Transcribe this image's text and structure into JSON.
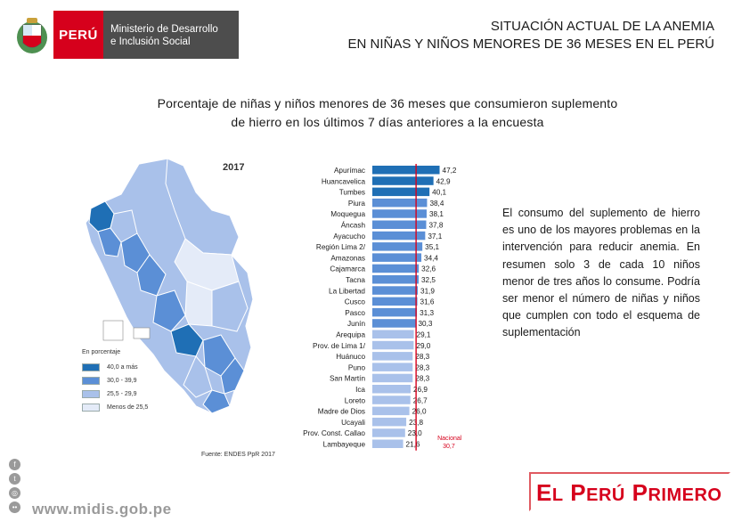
{
  "header": {
    "peru_label": "PERÚ",
    "ministry_line1": "Ministerio de Desarrollo",
    "ministry_line2": "e Inclusión Social",
    "title_line1": "SITUACIÓN ACTUAL DE LA ANEMIA",
    "title_line2": "EN NIÑAS Y NIÑOS MENORES DE 36 MESES EN EL PERÚ"
  },
  "subtitle_line1": "Porcentaje de niñas y niños menores de 36 meses que consumieron suplemento",
  "subtitle_line2": "de hierro en los últimos 7 días anteriores a la encuesta",
  "map": {
    "year": "2017",
    "legend_title": "En porcentaje",
    "legend": [
      {
        "label": "40,0 a más",
        "color": "#1f6fb5"
      },
      {
        "label": "30,0 - 39,9",
        "color": "#5b8fd6"
      },
      {
        "label": "25,5 - 29,9",
        "color": "#a9c1ea"
      },
      {
        "label": "Menos de 25,5",
        "color": "#e4ebf8"
      }
    ],
    "source": "Fuente: ENDES PpR 2017"
  },
  "chart_data": {
    "type": "bar",
    "orientation": "horizontal",
    "categories": [
      "Apurímac",
      "Huancavelica",
      "Tumbes",
      "Piura",
      "Moquegua",
      "Áncash",
      "Ayacucho",
      "Región Lima 2/",
      "Amazonas",
      "Cajamarca",
      "Tacna",
      "La Libertad",
      "Cusco",
      "Pasco",
      "Junín",
      "Arequipa",
      "Prov. de Lima 1/",
      "Huánuco",
      "Puno",
      "San Martín",
      "Ica",
      "Loreto",
      "Madre de Dios",
      "Ucayali",
      "Prov. Const. Callao",
      "Lambayeque"
    ],
    "values": [
      47.2,
      42.9,
      40.1,
      38.4,
      38.1,
      37.8,
      37.1,
      35.1,
      34.4,
      32.6,
      32.5,
      31.9,
      31.6,
      31.3,
      30.3,
      29.1,
      29.0,
      28.3,
      28.3,
      28.3,
      26.9,
      26.7,
      26.0,
      23.8,
      23.0,
      21.6
    ],
    "value_labels": [
      "47,2",
      "42,9",
      "40,1",
      "38,4",
      "38,1",
      "37,8",
      "37,1",
      "35,1",
      "34,4",
      "32,6",
      "32,5",
      "31,9",
      "31,6",
      "31,3",
      "30,3",
      "29,1",
      "29,0",
      "28,3",
      "28,3",
      "28,3",
      "26,9",
      "26,7",
      "26,0",
      "23,8",
      "23,0",
      "21,6"
    ],
    "reference_line": {
      "label": "Nacional",
      "value": 30.7,
      "value_label": "30,7",
      "color": "#d6001c"
    },
    "colors": {
      "dark": "#1f6fb5",
      "mid": "#5b8fd6",
      "light": "#a9c1ea"
    }
  },
  "paragraph": "El consumo del suplemento de hierro es uno de los mayores problemas en la intervención para reducir anemia. En resumen solo 3 de cada 10 niños menor de tres años lo consume. Podría ser menor el número de niñas y niños que cumplen con todo el esquema de suplementación",
  "footer": {
    "website": "www.midis.gob.pe",
    "brand_word1": "E",
    "brand_word1_sc": "L",
    "brand_word2": "P",
    "brand_word2_sc": "ERÚ",
    "brand_word3": "P",
    "brand_word3_sc": "RIMERO",
    "social_icons": [
      "facebook-icon",
      "twitter-icon",
      "instagram-icon",
      "flickr-icon"
    ]
  }
}
